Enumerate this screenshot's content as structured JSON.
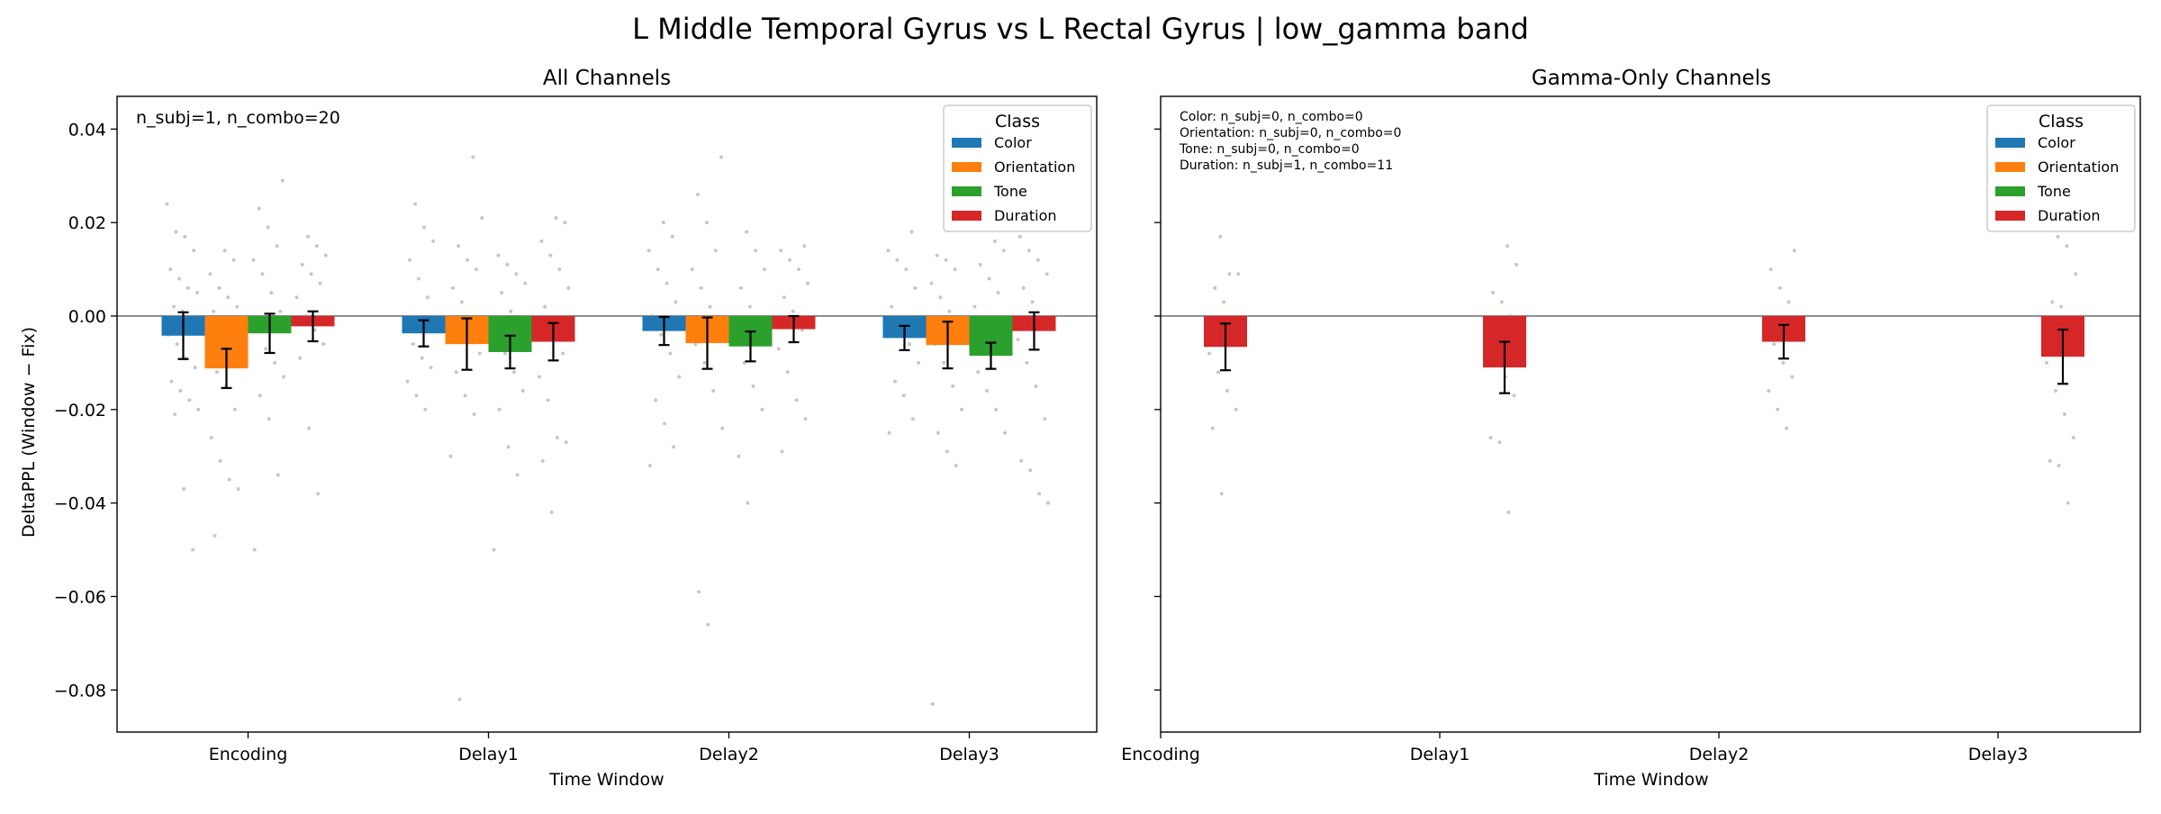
{
  "figure": {
    "suptitle": "L Middle Temporal Gyrus vs L Rectal Gyrus  |  low_gamma band",
    "ylabel": "DeltaPPL (Window − Fix)"
  },
  "chart_data": [
    {
      "type": "bar",
      "title": "All Channels",
      "xlabel": "Time Window",
      "ylabel": "DeltaPPL (Window − Fix)",
      "categories": [
        "Encoding",
        "Delay1",
        "Delay2",
        "Delay3"
      ],
      "ylim": [
        -0.089,
        0.047
      ],
      "yticks": [
        0.04,
        0.02,
        0.0,
        -0.02,
        -0.04,
        -0.06,
        -0.08
      ],
      "ytick_labels": [
        "0.04",
        "0.02",
        "0.00",
        "−0.02",
        "−0.04",
        "−0.06",
        "−0.08"
      ],
      "annotation": [
        "n_subj=1, n_combo=20"
      ],
      "legend": {
        "title": "Class",
        "position": "top-right"
      },
      "series": [
        {
          "name": "Color",
          "color": "#1f77b4",
          "values": [
            -0.0042,
            -0.0037,
            -0.0032,
            -0.0047
          ],
          "errors": [
            0.005,
            0.0028,
            0.003,
            0.0026
          ]
        },
        {
          "name": "Orientation",
          "color": "#ff7f0e",
          "values": [
            -0.0112,
            -0.006,
            -0.0058,
            -0.0062
          ],
          "errors": [
            0.0042,
            0.0055,
            0.0055,
            0.005
          ]
        },
        {
          "name": "Tone",
          "color": "#2ca02c",
          "values": [
            -0.0037,
            -0.0077,
            -0.0065,
            -0.0085
          ],
          "errors": [
            0.0042,
            0.0035,
            0.0032,
            0.0028
          ]
        },
        {
          "name": "Duration",
          "color": "#d62728",
          "values": [
            -0.0022,
            -0.0055,
            -0.0028,
            -0.0032
          ],
          "errors": [
            0.0032,
            0.004,
            0.0028,
            0.004
          ]
        }
      ],
      "points": [
        [
          [
            0.024,
            0.018,
            0.017,
            0.014,
            0.01,
            0.008,
            0.006,
            0.005,
            0.002,
            0.001,
            -0.002,
            -0.004,
            -0.006,
            -0.009,
            -0.011,
            -0.014,
            -0.016,
            -0.018,
            -0.02,
            -0.021,
            -0.037,
            -0.05
          ],
          [
            0.014,
            0.012,
            0.009,
            0.006,
            0.004,
            0.002,
            0.001,
            -0.002,
            -0.005,
            -0.008,
            -0.012,
            -0.015,
            -0.02,
            -0.026,
            -0.031,
            -0.035,
            -0.037,
            -0.047
          ],
          [
            0.029,
            0.023,
            0.019,
            0.015,
            0.012,
            0.009,
            0.005,
            0.001,
            -0.002,
            -0.007,
            -0.01,
            -0.013,
            -0.017,
            -0.022,
            -0.034,
            -0.05
          ],
          [
            0.017,
            0.015,
            0.013,
            0.011,
            0.009,
            0.007,
            0.004,
            0.0,
            -0.003,
            -0.006,
            -0.009,
            -0.024,
            -0.038
          ]
        ],
        [
          [
            0.024,
            0.019,
            0.016,
            0.012,
            0.008,
            0.004,
            -0.002,
            -0.006,
            -0.009,
            -0.011,
            -0.014,
            -0.017,
            -0.02
          ],
          [
            0.034,
            0.021,
            0.015,
            0.012,
            0.01,
            0.006,
            0.003,
            -0.004,
            -0.008,
            -0.012,
            -0.017,
            -0.021,
            -0.03,
            -0.082
          ],
          [
            0.013,
            0.011,
            0.009,
            0.007,
            0.005,
            0.001,
            -0.002,
            -0.005,
            -0.008,
            -0.012,
            -0.016,
            -0.02,
            -0.028,
            -0.034,
            -0.05
          ],
          [
            0.021,
            0.02,
            0.016,
            0.013,
            0.01,
            0.006,
            0.002,
            -0.003,
            -0.008,
            -0.013,
            -0.018,
            -0.026,
            -0.027,
            -0.031,
            -0.042
          ]
        ],
        [
          [
            0.02,
            0.017,
            0.014,
            0.01,
            0.007,
            0.003,
            0.0,
            -0.004,
            -0.008,
            -0.013,
            -0.018,
            -0.023,
            -0.028,
            -0.032
          ],
          [
            0.034,
            0.026,
            0.02,
            0.014,
            0.01,
            0.006,
            0.002,
            -0.002,
            -0.006,
            -0.01,
            -0.016,
            -0.024,
            -0.059,
            -0.066
          ],
          [
            0.018,
            0.014,
            0.01,
            0.006,
            0.002,
            -0.002,
            -0.006,
            -0.01,
            -0.015,
            -0.02,
            -0.03,
            -0.04
          ],
          [
            0.015,
            0.014,
            0.012,
            0.01,
            0.007,
            0.004,
            0.001,
            -0.003,
            -0.007,
            -0.012,
            -0.018,
            -0.022,
            -0.029
          ]
        ],
        [
          [
            0.018,
            0.014,
            0.012,
            0.01,
            0.006,
            0.002,
            -0.002,
            -0.006,
            -0.01,
            -0.014,
            -0.017,
            -0.022,
            -0.025
          ],
          [
            0.013,
            0.012,
            0.01,
            0.007,
            0.004,
            0.001,
            -0.003,
            -0.006,
            -0.01,
            -0.015,
            -0.02,
            -0.025,
            -0.029,
            -0.032,
            -0.083
          ],
          [
            0.016,
            0.014,
            0.011,
            0.008,
            0.005,
            0.002,
            -0.001,
            -0.004,
            -0.008,
            -0.012,
            -0.016,
            -0.02,
            -0.025
          ],
          [
            0.017,
            0.014,
            0.012,
            0.009,
            0.006,
            0.003,
            -0.001,
            -0.005,
            -0.01,
            -0.015,
            -0.022,
            -0.031,
            -0.033,
            -0.038,
            -0.04
          ]
        ]
      ]
    },
    {
      "type": "bar",
      "title": "Gamma-Only Channels",
      "xlabel": "Time Window",
      "categories": [
        "Encoding",
        "Delay1",
        "Delay2",
        "Delay3"
      ],
      "ylim": [
        -0.089,
        0.047
      ],
      "annotation": [
        "Color: n_subj=0, n_combo=0",
        "Orientation: n_subj=0, n_combo=0",
        "Tone: n_subj=0, n_combo=0",
        "Duration: n_subj=1, n_combo=11"
      ],
      "legend": {
        "title": "Class",
        "position": "top-right"
      },
      "series": [
        {
          "name": "Color",
          "color": "#1f77b4",
          "values": [
            null,
            null,
            null,
            null
          ],
          "errors": [
            null,
            null,
            null,
            null
          ]
        },
        {
          "name": "Orientation",
          "color": "#ff7f0e",
          "values": [
            null,
            null,
            null,
            null
          ],
          "errors": [
            null,
            null,
            null,
            null
          ]
        },
        {
          "name": "Tone",
          "color": "#2ca02c",
          "values": [
            null,
            null,
            null,
            null
          ],
          "errors": [
            null,
            null,
            null,
            null
          ]
        },
        {
          "name": "Duration",
          "color": "#d62728",
          "values": [
            -0.0066,
            -0.011,
            -0.0055,
            -0.0087
          ],
          "errors": [
            0.005,
            0.0055,
            0.0036,
            0.0058
          ]
        }
      ],
      "points": [
        [
          [],
          [],
          [],
          [
            0.017,
            0.009,
            0.009,
            0.006,
            0.003,
            -0.003,
            -0.008,
            -0.012,
            -0.016,
            -0.02,
            -0.024,
            -0.038
          ]
        ],
        [
          [],
          [],
          [],
          [
            0.015,
            0.011,
            0.005,
            0.003,
            0.0,
            -0.005,
            -0.01,
            -0.013,
            -0.017,
            -0.026,
            -0.027,
            -0.042
          ]
        ],
        [
          [],
          [],
          [],
          [
            0.014,
            0.01,
            0.006,
            0.003,
            -0.002,
            -0.006,
            -0.01,
            -0.013,
            -0.016,
            -0.02,
            -0.024
          ]
        ],
        [
          [],
          [],
          [],
          [
            0.019,
            0.017,
            0.015,
            0.009,
            0.003,
            0.002,
            -0.004,
            -0.01,
            -0.016,
            -0.021,
            -0.026,
            -0.031,
            -0.032,
            -0.04
          ]
        ]
      ]
    }
  ]
}
